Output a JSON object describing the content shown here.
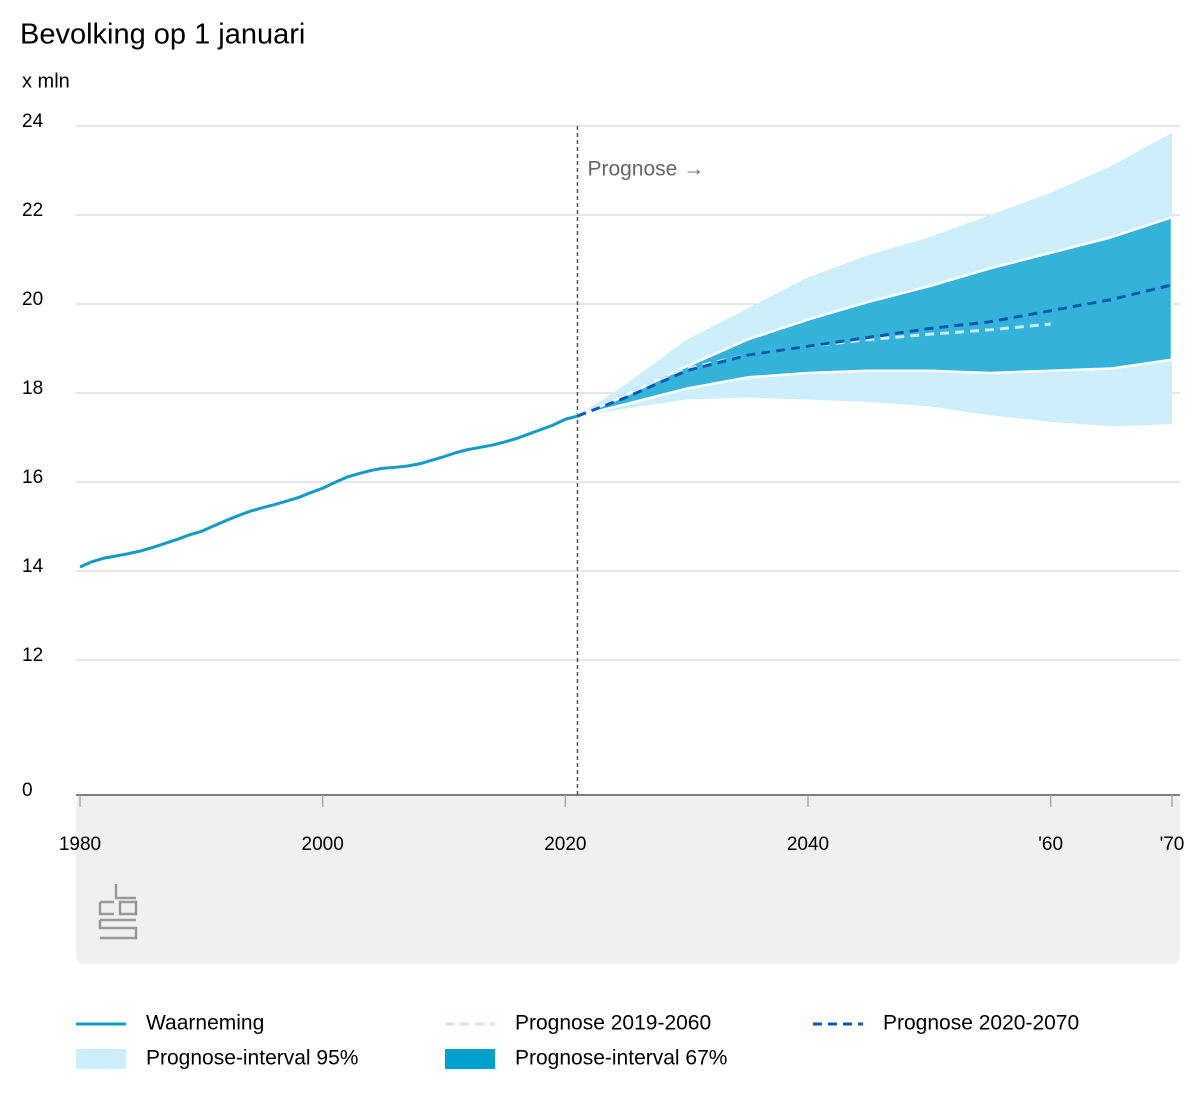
{
  "chart_data": {
    "type": "line",
    "title": "Bevolking op 1 januari",
    "y_label": "x mln",
    "xlim": [
      1980,
      2070
    ],
    "xticks": [
      1980,
      2000,
      2020,
      2040,
      {
        "value": 2060,
        "label": "'60"
      },
      {
        "value": 2070,
        "label": "'70"
      }
    ],
    "ylim": [
      0,
      24
    ],
    "y_break": [
      0,
      12
    ],
    "yticks": [
      0,
      12,
      14,
      16,
      18,
      20,
      22,
      24
    ],
    "grid": true,
    "annotation": {
      "text": "Prognose →",
      "x": 2021
    },
    "series": [
      {
        "name": "Waarneming",
        "color": "#129bc7",
        "style": "solid",
        "x": [
          1980,
          1981,
          1982,
          1983,
          1984,
          1985,
          1986,
          1987,
          1988,
          1989,
          1990,
          1991,
          1992,
          1993,
          1994,
          1995,
          1996,
          1997,
          1998,
          1999,
          2000,
          2001,
          2002,
          2003,
          2004,
          2005,
          2006,
          2007,
          2008,
          2009,
          2010,
          2011,
          2012,
          2013,
          2014,
          2015,
          2016,
          2017,
          2018,
          2019,
          2020,
          2021
        ],
        "values": [
          14.09,
          14.21,
          14.29,
          14.34,
          14.39,
          14.45,
          14.53,
          14.62,
          14.71,
          14.81,
          14.89,
          15.01,
          15.13,
          15.24,
          15.34,
          15.42,
          15.49,
          15.57,
          15.65,
          15.76,
          15.86,
          15.99,
          16.11,
          16.19,
          16.26,
          16.31,
          16.33,
          16.36,
          16.41,
          16.49,
          16.57,
          16.66,
          16.73,
          16.78,
          16.83,
          16.9,
          16.98,
          17.08,
          17.18,
          17.28,
          17.41,
          17.48
        ]
      },
      {
        "name": "Prognose 2019-2060",
        "color": "#cce8f8",
        "style": "dashed",
        "x": [
          2021,
          2025,
          2030,
          2035,
          2040,
          2045,
          2050,
          2055,
          2060
        ],
        "values": [
          17.5,
          18.0,
          18.55,
          18.85,
          19.05,
          19.2,
          19.32,
          19.42,
          19.55
        ]
      },
      {
        "name": "Prognose 2020-2070",
        "color": "#0a58b0",
        "style": "dashed",
        "x": [
          2021,
          2025,
          2030,
          2035,
          2040,
          2045,
          2050,
          2055,
          2060,
          2065,
          2070
        ],
        "values": [
          17.48,
          17.9,
          18.5,
          18.85,
          19.05,
          19.25,
          19.45,
          19.6,
          19.85,
          20.1,
          20.43
        ]
      }
    ],
    "bands": [
      {
        "name": "Prognose-interval 95%",
        "color": "#cdeefc",
        "x": [
          2021,
          2025,
          2030,
          2035,
          2040,
          2045,
          2050,
          2055,
          2060,
          2065,
          2070
        ],
        "upper": [
          17.48,
          18.2,
          19.2,
          19.9,
          20.6,
          21.1,
          21.5,
          22.0,
          22.5,
          23.1,
          23.85
        ],
        "lower": [
          17.48,
          17.65,
          17.85,
          17.9,
          17.85,
          17.8,
          17.7,
          17.5,
          17.35,
          17.25,
          17.3
        ]
      },
      {
        "name": "Prognose-interval 67%",
        "color": "#34b3da",
        "x": [
          2021,
          2025,
          2030,
          2035,
          2040,
          2045,
          2050,
          2055,
          2060,
          2065,
          2070
        ],
        "upper": [
          17.48,
          17.95,
          18.6,
          19.2,
          19.65,
          20.05,
          20.4,
          20.8,
          21.15,
          21.5,
          21.95
        ],
        "lower": [
          17.48,
          17.75,
          18.1,
          18.35,
          18.45,
          18.5,
          18.5,
          18.45,
          18.5,
          18.55,
          18.75
        ]
      }
    ]
  }
}
